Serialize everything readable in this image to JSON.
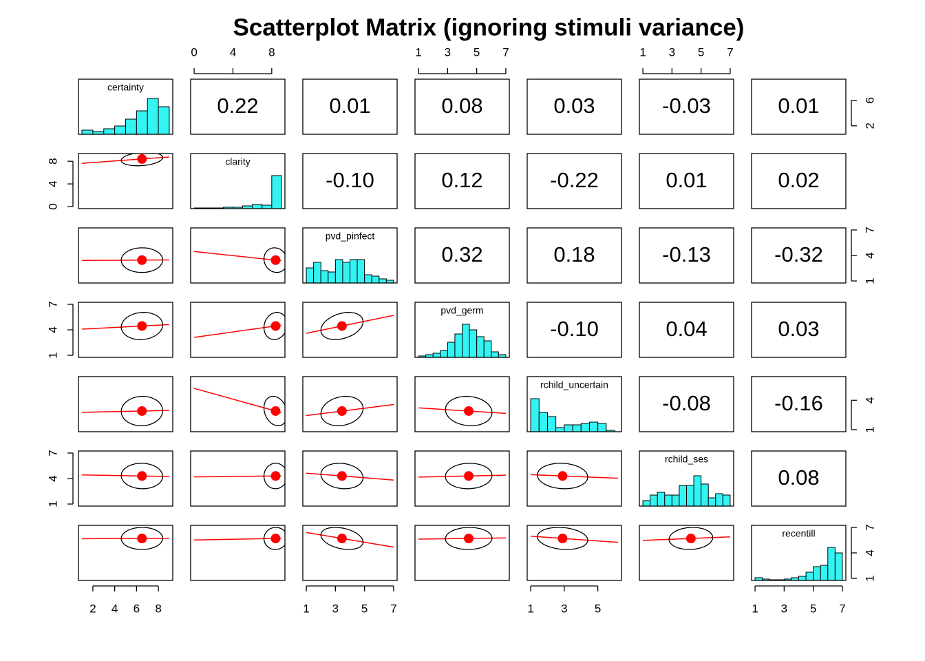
{
  "chart_data": {
    "type": "scatter-matrix",
    "title": "Scatterplot Matrix (ignoring stimuli variance)",
    "hist_color": "#33f3f3",
    "point_color": "#ff0000",
    "variables": [
      {
        "name": "certainty",
        "lim": [
          1,
          9
        ],
        "x_ticks": [
          2,
          4,
          6,
          8
        ],
        "y_ticks": [
          2,
          6
        ],
        "mean": 6.5,
        "sd": 1.9,
        "bins": [
          1,
          2,
          3,
          4,
          5,
          6,
          7,
          8,
          9
        ],
        "counts": [
          6,
          4,
          8,
          12,
          22,
          34,
          52,
          40
        ]
      },
      {
        "name": "clarity",
        "lim": [
          0,
          9
        ],
        "x_ticks": [
          0,
          4,
          8
        ],
        "y_ticks": [
          0,
          4,
          8
        ],
        "mean": 8.4,
        "sd": 1.2,
        "bins": [
          0,
          1,
          2,
          3,
          4,
          5,
          6,
          7,
          8,
          9
        ],
        "counts": [
          1,
          1,
          1,
          2,
          2,
          4,
          6,
          5,
          48
        ]
      },
      {
        "name": "pvd_pinfect",
        "lim": [
          1,
          7
        ],
        "x_ticks": [
          1,
          3,
          5,
          7
        ],
        "y_ticks": [
          1,
          4,
          7
        ],
        "mean": 3.45,
        "sd": 1.45,
        "bins": [
          1,
          1.5,
          2,
          2.5,
          3,
          3.5,
          4,
          4.5,
          5,
          5.5,
          6,
          6.5,
          7
        ],
        "counts": [
          22,
          30,
          18,
          16,
          34,
          30,
          34,
          34,
          12,
          10,
          6,
          4
        ]
      },
      {
        "name": "pvd_germ",
        "lim": [
          1,
          7
        ],
        "x_ticks": [
          1,
          3,
          5,
          7
        ],
        "y_ticks": [
          1,
          4,
          7
        ],
        "mean": 4.45,
        "sd": 1.6,
        "bins": [
          1,
          1.5,
          2,
          2.5,
          3,
          3.5,
          4,
          4.5,
          5,
          5.5,
          6,
          6.5,
          7
        ],
        "counts": [
          2,
          4,
          6,
          10,
          22,
          34,
          48,
          40,
          30,
          24,
          8,
          4
        ]
      },
      {
        "name": "rchild_uncertain",
        "lim": [
          1,
          6.2
        ],
        "x_ticks": [
          1,
          3,
          5
        ],
        "y_ticks": [
          1,
          4
        ],
        "mean": 2.9,
        "sd": 1.5,
        "bins": [
          1,
          1.5,
          2,
          2.5,
          3,
          3.5,
          4,
          4.5,
          5,
          5.5,
          6
        ],
        "counts": [
          48,
          28,
          22,
          6,
          10,
          10,
          12,
          14,
          12,
          2
        ]
      },
      {
        "name": "rchild_ses",
        "lim": [
          1,
          7
        ],
        "x_ticks": [
          1,
          3,
          5,
          7
        ],
        "y_ticks": [
          1,
          4,
          7
        ],
        "mean": 4.3,
        "sd": 1.5,
        "bins": [
          1,
          1.5,
          2,
          2.5,
          3,
          3.5,
          4,
          4.5,
          5,
          5.5,
          6,
          6.5,
          7
        ],
        "counts": [
          8,
          16,
          20,
          16,
          16,
          30,
          30,
          44,
          32,
          12,
          18,
          16
        ]
      },
      {
        "name": "recentill",
        "lim": [
          1,
          7
        ],
        "x_ticks": [
          1,
          3,
          5,
          7
        ],
        "y_ticks": [
          1,
          4,
          7
        ],
        "mean": 5.7,
        "sd": 1.3,
        "bins": [
          1,
          1.5,
          2,
          2.5,
          3,
          3.5,
          4,
          4.5,
          5,
          5.5,
          6,
          6.5,
          7
        ],
        "counts": [
          4,
          2,
          1,
          1,
          2,
          4,
          6,
          12,
          20,
          22,
          48,
          40
        ]
      }
    ],
    "correlations": [
      [
        0.22,
        0.01,
        0.08,
        0.03,
        -0.03,
        0.01
      ],
      [
        -0.1,
        0.12,
        -0.22,
        0.01,
        0.02
      ],
      [
        0.32,
        0.18,
        -0.13,
        -0.32
      ],
      [
        -0.1,
        0.04,
        0.03
      ],
      [
        -0.08,
        -0.16
      ],
      [
        0.08
      ]
    ],
    "correlation_labels": [
      [
        "0.22",
        "0.01",
        "0.08",
        "0.03",
        "-0.03",
        "0.01"
      ],
      [
        "-0.10",
        "0.12",
        "-0.22",
        "0.01",
        "0.02"
      ],
      [
        "0.32",
        "0.18",
        "-0.13",
        "-0.32"
      ],
      [
        "-0.10",
        "0.04",
        "0.03"
      ],
      [
        "-0.08",
        "-0.16"
      ],
      [
        "0.08"
      ]
    ]
  }
}
